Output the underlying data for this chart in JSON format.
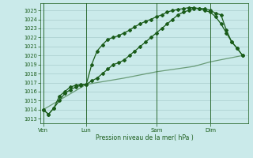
{
  "background_color": "#caeaea",
  "grid_color": "#a8cccc",
  "line_color": "#1a5c1a",
  "xlabel": "Pression niveau de la mer( hPa )",
  "ylim": [
    1012.5,
    1025.8
  ],
  "yticks": [
    1013,
    1014,
    1015,
    1016,
    1017,
    1018,
    1019,
    1020,
    1021,
    1022,
    1023,
    1024,
    1025
  ],
  "xtick_labels": [
    "Ven",
    "Lun",
    "Sam",
    "Dim"
  ],
  "xtick_positions": [
    0,
    8,
    21,
    31
  ],
  "vline_positions": [
    0,
    8,
    21,
    31
  ],
  "xlim": [
    -0.5,
    38
  ],
  "line1_x": [
    0,
    1,
    2,
    3,
    4,
    5,
    6,
    7,
    8,
    9,
    10,
    11,
    12,
    13,
    14,
    15,
    16,
    17,
    18,
    19,
    20,
    21,
    22,
    23,
    24,
    25,
    26,
    27,
    28,
    29,
    30,
    31,
    32,
    33,
    34,
    35,
    36,
    37
  ],
  "line1_y": [
    1014.0,
    1013.5,
    1014.2,
    1015.0,
    1015.8,
    1016.2,
    1016.5,
    1016.7,
    1016.8,
    1017.2,
    1017.5,
    1018.0,
    1018.5,
    1019.0,
    1019.2,
    1019.5,
    1020.0,
    1020.5,
    1021.0,
    1021.5,
    1022.0,
    1022.5,
    1023.0,
    1023.5,
    1024.0,
    1024.5,
    1024.8,
    1025.0,
    1025.2,
    1025.2,
    1025.2,
    1025.0,
    1024.7,
    1024.5,
    1022.8,
    1021.5,
    1020.8,
    1020.0
  ],
  "line2_x": [
    0,
    1,
    2,
    3,
    4,
    5,
    6,
    7,
    8,
    9,
    10,
    11,
    12,
    13,
    14,
    15,
    16,
    17,
    18,
    19,
    20,
    21,
    22,
    23,
    24,
    25,
    26,
    27,
    28,
    29,
    30,
    31,
    32,
    33,
    34,
    35,
    36,
    37
  ],
  "line2_y": [
    1014.0,
    1013.5,
    1014.2,
    1015.5,
    1016.0,
    1016.5,
    1016.7,
    1016.8,
    1016.8,
    1019.0,
    1020.5,
    1021.2,
    1021.8,
    1022.0,
    1022.2,
    1022.5,
    1022.8,
    1023.2,
    1023.5,
    1023.8,
    1024.0,
    1024.3,
    1024.5,
    1024.8,
    1025.0,
    1025.1,
    1025.2,
    1025.3,
    1025.3,
    1025.2,
    1025.0,
    1024.8,
    1024.3,
    1023.5,
    1022.5,
    1021.5,
    1020.8,
    1020.0
  ],
  "line3_x": [
    0,
    8,
    15,
    21,
    28,
    31,
    37
  ],
  "line3_y": [
    1014.0,
    1016.8,
    1017.5,
    1018.2,
    1018.8,
    1019.3,
    1020.0
  ]
}
